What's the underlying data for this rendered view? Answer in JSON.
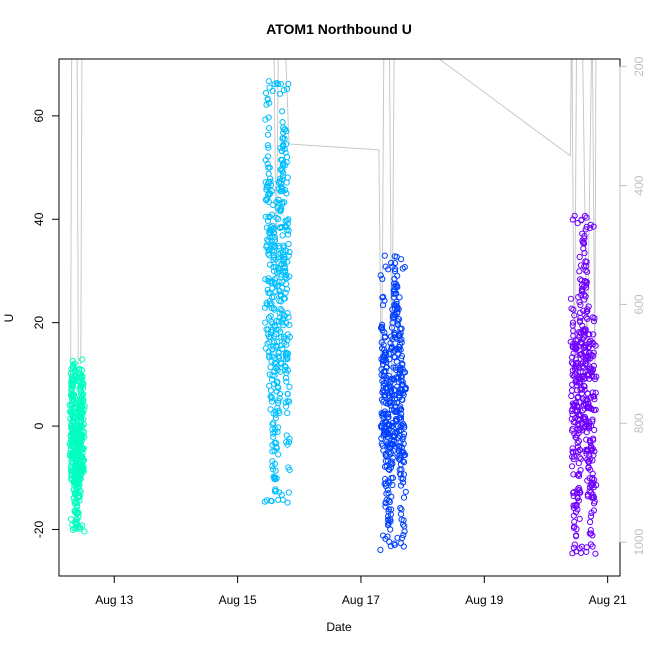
{
  "chart_data": {
    "type": "scatter",
    "title": "ATOM1 Northbound U",
    "xlabel": "Date",
    "ylabel": "U",
    "xlim": [
      "2024-08-12 02:30",
      "2024-08-21 04:48"
    ],
    "ylim": [
      -29,
      71
    ],
    "y2lim": [
      1057,
      187
    ],
    "grid": false,
    "legend": "none",
    "x_ticks": [
      {
        "value": "2024-08-13",
        "label": "Aug 13"
      },
      {
        "value": "2024-08-15",
        "label": "Aug 15"
      },
      {
        "value": "2024-08-17",
        "label": "Aug 17"
      },
      {
        "value": "2024-08-19",
        "label": "Aug 19"
      },
      {
        "value": "2024-08-21",
        "label": "Aug 21"
      }
    ],
    "y_ticks": [
      -20,
      0,
      20,
      40,
      60
    ],
    "y2_ticks": [
      200,
      400,
      600,
      800,
      1000
    ],
    "series": [
      {
        "color": "#00ffbf",
        "x_range": [
          "2024-08-12 07:00",
          "2024-08-12 12:00"
        ],
        "y_min": -21,
        "y_max": 13
      },
      {
        "color": "#00bfff",
        "x_range": [
          "2024-08-15 11:00",
          "2024-08-15 20:00"
        ],
        "y_min": -15,
        "y_max": 67
      },
      {
        "color": "#0040ff",
        "x_range": [
          "2024-08-17 08:00",
          "2024-08-17 17:00"
        ],
        "y_min": -24,
        "y_max": 33
      },
      {
        "color": "#6f00ff",
        "x_range": [
          "2024-08-20 10:00",
          "2024-08-20 19:00"
        ],
        "y_min": -25,
        "y_max": 41
      }
    ],
    "profile_line": {
      "color": "#c8c8c8",
      "points": [
        {
          "t": "2024-08-12 07:00",
          "depth": 730
        },
        {
          "t": "2024-08-12 07:30",
          "depth": 100
        },
        {
          "t": "2024-08-12 09:30",
          "depth": 100
        },
        {
          "t": "2024-08-12 10:00",
          "depth": 700
        },
        {
          "t": "2024-08-12 11:00",
          "depth": 700
        },
        {
          "t": "2024-08-12 11:30",
          "depth": 100
        },
        {
          "t": "2024-08-15 11:00",
          "depth": 100
        },
        {
          "t": "2024-08-15 14:00",
          "depth": 100
        },
        {
          "t": "2024-08-15 15:00",
          "depth": 550
        },
        {
          "t": "2024-08-15 16:00",
          "depth": 100
        },
        {
          "t": "2024-08-15 18:00",
          "depth": 100
        },
        {
          "t": "2024-08-15 20:00",
          "depth": 330
        },
        {
          "t": "2024-08-17 07:00",
          "depth": 340
        },
        {
          "t": "2024-08-17 08:00",
          "depth": 780
        },
        {
          "t": "2024-08-17 09:00",
          "depth": 100
        },
        {
          "t": "2024-08-17 11:00",
          "depth": 100
        },
        {
          "t": "2024-08-17 12:00",
          "depth": 750
        },
        {
          "t": "2024-08-17 13:00",
          "depth": 100
        },
        {
          "t": "2024-08-17 17:00",
          "depth": 100
        },
        {
          "t": "2024-08-17 22:00",
          "depth": 160
        },
        {
          "t": "2024-08-20 09:30",
          "depth": 350
        },
        {
          "t": "2024-08-20 10:00",
          "depth": 100
        },
        {
          "t": "2024-08-20 11:00",
          "depth": 750
        },
        {
          "t": "2024-08-20 12:00",
          "depth": 100
        },
        {
          "t": "2024-08-20 14:00",
          "depth": 100
        },
        {
          "t": "2024-08-20 16:00",
          "depth": 700
        },
        {
          "t": "2024-08-20 18:00",
          "depth": 100
        },
        {
          "t": "2024-08-20 19:00",
          "depth": 720
        },
        {
          "t": "2024-08-20 19:30",
          "depth": 100
        }
      ]
    }
  }
}
